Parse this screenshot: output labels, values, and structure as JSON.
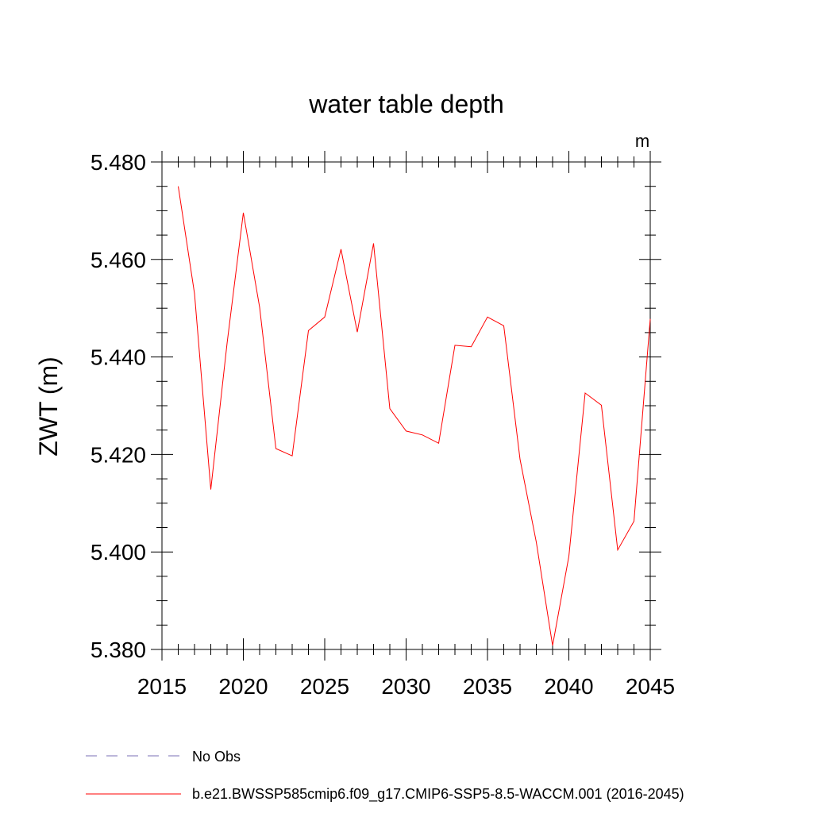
{
  "chart_data": {
    "type": "line",
    "title": "water table depth",
    "units": "m",
    "ylabel": "ZWT  (m)",
    "xlabel": "",
    "xlim": [
      2015,
      2045
    ],
    "ylim": [
      5.38,
      5.48
    ],
    "x_ticks": [
      2015,
      2020,
      2025,
      2030,
      2035,
      2040,
      2045
    ],
    "x_tick_labels": [
      "2015",
      "2020",
      "2025",
      "2030",
      "2035",
      "2040",
      "2045"
    ],
    "y_ticks": [
      5.38,
      5.4,
      5.42,
      5.44,
      5.46,
      5.48
    ],
    "y_tick_labels": [
      "5.380",
      "5.400",
      "5.420",
      "5.440",
      "5.460",
      "5.480"
    ],
    "grid": false,
    "legend_position": "bottom",
    "series": [
      {
        "name": "b.e21.BWSSP585cmip6.f09_g17.CMIP6-SSP5-8.5-WACCM.001 (2016-2045)",
        "color": "#ff0000",
        "dash": "solid",
        "x": [
          2016,
          2017,
          2018,
          2019,
          2020,
          2021,
          2022,
          2023,
          2024,
          2025,
          2026,
          2027,
          2028,
          2029,
          2030,
          2031,
          2032,
          2033,
          2034,
          2035,
          2036,
          2037,
          2038,
          2039,
          2040,
          2041,
          2042,
          2043,
          2044,
          2045
        ],
        "values": [
          5.475,
          5.453,
          5.4128,
          5.4428,
          5.4696,
          5.4502,
          5.4212,
          5.4197,
          5.4454,
          5.4482,
          5.4621,
          5.4451,
          5.4633,
          5.4294,
          5.4248,
          5.424,
          5.4223,
          5.4424,
          5.4421,
          5.4482,
          5.4464,
          5.419,
          5.402,
          5.3808,
          5.3991,
          5.4326,
          5.4301,
          5.4004,
          5.4063,
          5.4478
        ]
      }
    ],
    "legend": [
      {
        "label": "No Obs",
        "color": "#7a6fb5",
        "dash": "dashed"
      },
      {
        "label": "b.e21.BWSSP585cmip6.f09_g17.CMIP6-SSP5-8.5-WACCM.001 (2016-2045)",
        "color": "#ff0000",
        "dash": "solid"
      }
    ]
  }
}
